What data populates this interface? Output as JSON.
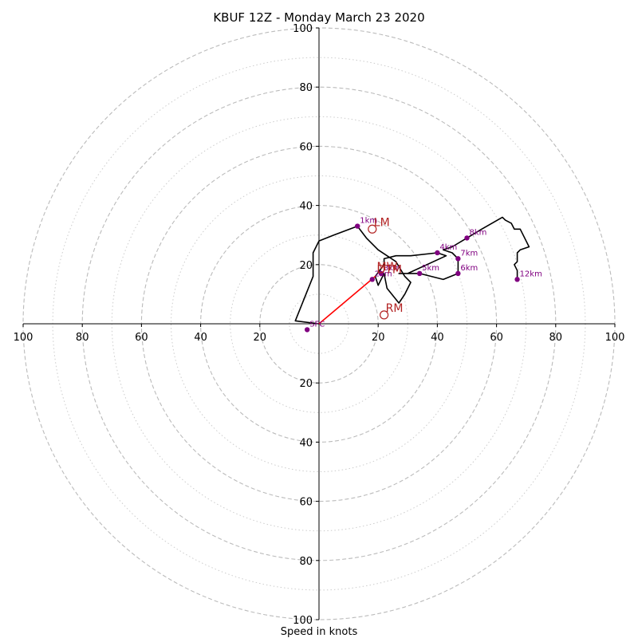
{
  "chart_data": {
    "type": "scatter",
    "title": "KBUF 12Z - Monday March 23 2020",
    "xlabel": "Speed in knots",
    "xlim": [
      -100,
      100
    ],
    "ylim": [
      -100,
      100
    ],
    "rings": {
      "major": [
        20,
        40,
        60,
        80,
        100
      ],
      "minor": [
        10,
        30,
        50,
        70,
        90
      ]
    },
    "ticks": {
      "x_left": [
        "100",
        "80",
        "60",
        "40",
        "20"
      ],
      "x_right": [
        "20",
        "40",
        "60",
        "80",
        "100"
      ],
      "y_top": [
        "20",
        "40",
        "60",
        "80",
        "100"
      ],
      "y_bottom": [
        "20",
        "40",
        "60",
        "80",
        "100"
      ]
    },
    "hodograph_trace": [
      [
        0,
        0
      ],
      [
        -8,
        1
      ],
      [
        -2,
        16
      ],
      [
        -2,
        24
      ],
      [
        0,
        28
      ],
      [
        5,
        30
      ],
      [
        13,
        33
      ],
      [
        16,
        29
      ],
      [
        20,
        25
      ],
      [
        26,
        21
      ],
      [
        29,
        16
      ],
      [
        31,
        14
      ],
      [
        29,
        10
      ],
      [
        27,
        7
      ],
      [
        23,
        12
      ],
      [
        22,
        17
      ],
      [
        20,
        13
      ],
      [
        19,
        16
      ],
      [
        22,
        20
      ],
      [
        22,
        22
      ],
      [
        26,
        23
      ],
      [
        30,
        23
      ],
      [
        31,
        23
      ],
      [
        40,
        24
      ],
      [
        43,
        23
      ],
      [
        30,
        17
      ],
      [
        27,
        17
      ],
      [
        34,
        17
      ],
      [
        42,
        15
      ],
      [
        47,
        17
      ],
      [
        47,
        20
      ],
      [
        47,
        22
      ],
      [
        45,
        24
      ],
      [
        42,
        25
      ],
      [
        45,
        26
      ],
      [
        50,
        29
      ],
      [
        55,
        32
      ],
      [
        62,
        36
      ],
      [
        63,
        35
      ],
      [
        65,
        34
      ],
      [
        66,
        32
      ],
      [
        68,
        32
      ],
      [
        69,
        30
      ],
      [
        71,
        26
      ],
      [
        68,
        25
      ],
      [
        67,
        24
      ],
      [
        67,
        21
      ],
      [
        66,
        20
      ],
      [
        67,
        18
      ],
      [
        67,
        15
      ]
    ],
    "height_markers": [
      {
        "label": "SFC",
        "x": -4,
        "y": -2
      },
      {
        "label": "1km",
        "x": 13,
        "y": 33
      },
      {
        "label": "2km",
        "x": 18,
        "y": 15
      },
      {
        "label": "3km",
        "x": 21,
        "y": 17
      },
      {
        "label": "4km",
        "x": 40,
        "y": 24
      },
      {
        "label": "5km",
        "x": 34,
        "y": 17
      },
      {
        "label": "6km",
        "x": 47,
        "y": 17
      },
      {
        "label": "7km",
        "x": 47,
        "y": 22
      },
      {
        "label": "8km",
        "x": 50,
        "y": 29
      },
      {
        "label": "12km",
        "x": 67,
        "y": 15
      }
    ],
    "shear_vector": {
      "from": [
        0,
        0
      ],
      "to": [
        19,
        16
      ]
    },
    "storm_motions": [
      {
        "label": "LM",
        "x": 18,
        "y": 32
      },
      {
        "label": "RM",
        "x": 22,
        "y": 3
      },
      {
        "label": "MW",
        "x": 19,
        "y": 17
      },
      {
        "label": "DTM",
        "x": 19,
        "y": 16
      }
    ],
    "colors": {
      "trace": "#000000",
      "markers": "#800080",
      "shear": "#ff0000",
      "storm_motion": "#b22222",
      "grid": "#bbbbbb"
    }
  }
}
